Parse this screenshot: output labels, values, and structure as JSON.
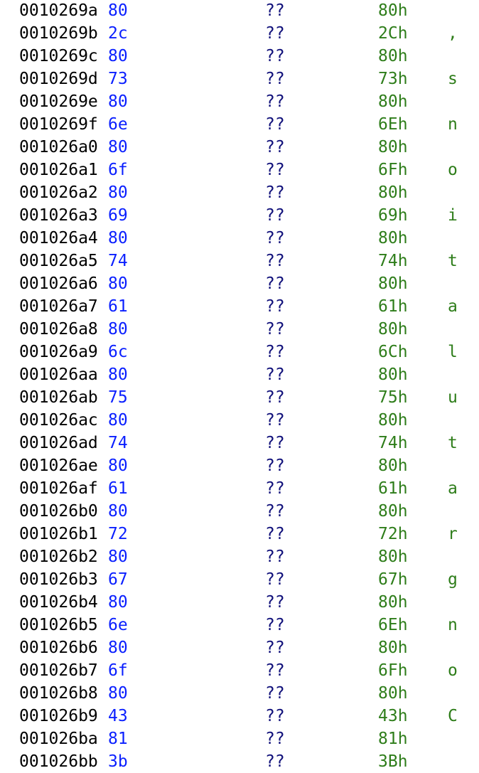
{
  "colors": {
    "address": "#000000",
    "byte": "#0a1fff",
    "mnemonic": "#10107a",
    "value": "#2e7d1a"
  },
  "rows": [
    {
      "address": "0010269a",
      "byte": "80",
      "mnemonic": "??",
      "value": "80h",
      "char": ""
    },
    {
      "address": "0010269b",
      "byte": "2c",
      "mnemonic": "??",
      "value": "2Ch",
      "char": ","
    },
    {
      "address": "0010269c",
      "byte": "80",
      "mnemonic": "??",
      "value": "80h",
      "char": ""
    },
    {
      "address": "0010269d",
      "byte": "73",
      "mnemonic": "??",
      "value": "73h",
      "char": "s"
    },
    {
      "address": "0010269e",
      "byte": "80",
      "mnemonic": "??",
      "value": "80h",
      "char": ""
    },
    {
      "address": "0010269f",
      "byte": "6e",
      "mnemonic": "??",
      "value": "6Eh",
      "char": "n"
    },
    {
      "address": "001026a0",
      "byte": "80",
      "mnemonic": "??",
      "value": "80h",
      "char": ""
    },
    {
      "address": "001026a1",
      "byte": "6f",
      "mnemonic": "??",
      "value": "6Fh",
      "char": "o"
    },
    {
      "address": "001026a2",
      "byte": "80",
      "mnemonic": "??",
      "value": "80h",
      "char": ""
    },
    {
      "address": "001026a3",
      "byte": "69",
      "mnemonic": "??",
      "value": "69h",
      "char": "i"
    },
    {
      "address": "001026a4",
      "byte": "80",
      "mnemonic": "??",
      "value": "80h",
      "char": ""
    },
    {
      "address": "001026a5",
      "byte": "74",
      "mnemonic": "??",
      "value": "74h",
      "char": "t"
    },
    {
      "address": "001026a6",
      "byte": "80",
      "mnemonic": "??",
      "value": "80h",
      "char": ""
    },
    {
      "address": "001026a7",
      "byte": "61",
      "mnemonic": "??",
      "value": "61h",
      "char": "a"
    },
    {
      "address": "001026a8",
      "byte": "80",
      "mnemonic": "??",
      "value": "80h",
      "char": ""
    },
    {
      "address": "001026a9",
      "byte": "6c",
      "mnemonic": "??",
      "value": "6Ch",
      "char": "l"
    },
    {
      "address": "001026aa",
      "byte": "80",
      "mnemonic": "??",
      "value": "80h",
      "char": ""
    },
    {
      "address": "001026ab",
      "byte": "75",
      "mnemonic": "??",
      "value": "75h",
      "char": "u"
    },
    {
      "address": "001026ac",
      "byte": "80",
      "mnemonic": "??",
      "value": "80h",
      "char": ""
    },
    {
      "address": "001026ad",
      "byte": "74",
      "mnemonic": "??",
      "value": "74h",
      "char": "t"
    },
    {
      "address": "001026ae",
      "byte": "80",
      "mnemonic": "??",
      "value": "80h",
      "char": ""
    },
    {
      "address": "001026af",
      "byte": "61",
      "mnemonic": "??",
      "value": "61h",
      "char": "a"
    },
    {
      "address": "001026b0",
      "byte": "80",
      "mnemonic": "??",
      "value": "80h",
      "char": ""
    },
    {
      "address": "001026b1",
      "byte": "72",
      "mnemonic": "??",
      "value": "72h",
      "char": "r"
    },
    {
      "address": "001026b2",
      "byte": "80",
      "mnemonic": "??",
      "value": "80h",
      "char": ""
    },
    {
      "address": "001026b3",
      "byte": "67",
      "mnemonic": "??",
      "value": "67h",
      "char": "g"
    },
    {
      "address": "001026b4",
      "byte": "80",
      "mnemonic": "??",
      "value": "80h",
      "char": ""
    },
    {
      "address": "001026b5",
      "byte": "6e",
      "mnemonic": "??",
      "value": "6Eh",
      "char": "n"
    },
    {
      "address": "001026b6",
      "byte": "80",
      "mnemonic": "??",
      "value": "80h",
      "char": ""
    },
    {
      "address": "001026b7",
      "byte": "6f",
      "mnemonic": "??",
      "value": "6Fh",
      "char": "o"
    },
    {
      "address": "001026b8",
      "byte": "80",
      "mnemonic": "??",
      "value": "80h",
      "char": ""
    },
    {
      "address": "001026b9",
      "byte": "43",
      "mnemonic": "??",
      "value": "43h",
      "char": "C"
    },
    {
      "address": "001026ba",
      "byte": "81",
      "mnemonic": "??",
      "value": "81h",
      "char": ""
    },
    {
      "address": "001026bb",
      "byte": "3b",
      "mnemonic": "??",
      "value": "3Bh",
      "char": ""
    }
  ]
}
